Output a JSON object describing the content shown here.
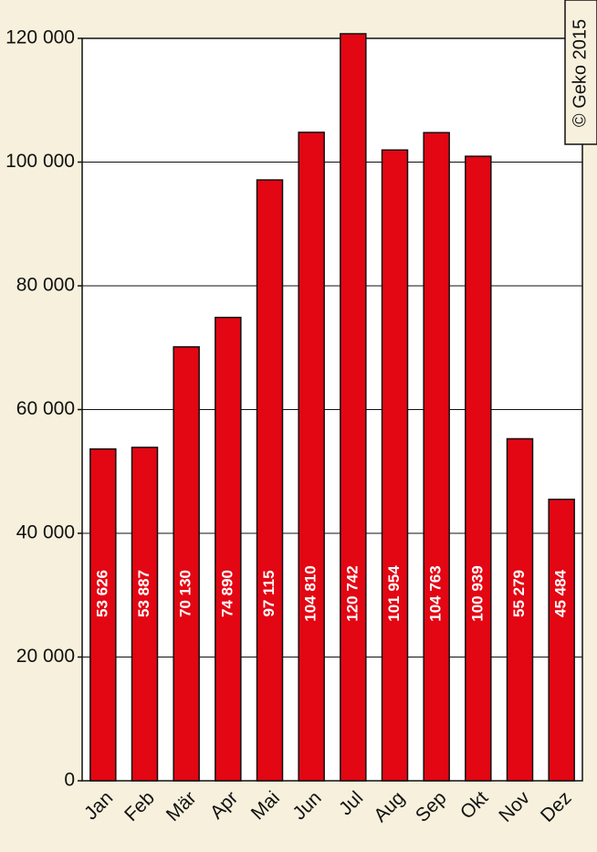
{
  "copyright": "© Geko 2015",
  "chart_data": {
    "type": "bar",
    "categories": [
      "Jan",
      "Feb",
      "Mär",
      "Apr",
      "Mai",
      "Jun",
      "Jul",
      "Aug",
      "Sep",
      "Okt",
      "Nov",
      "Dez"
    ],
    "values": [
      53626,
      53887,
      70130,
      74890,
      97115,
      104810,
      120742,
      101954,
      104763,
      100939,
      55279,
      45484
    ],
    "value_labels": [
      "53 626",
      "53 887",
      "70 130",
      "74 890",
      "97 115",
      "104 810",
      "120 742",
      "101 954",
      "104 763",
      "100 939",
      "55 279",
      "45 484"
    ],
    "color": "#e30613",
    "ylim": [
      0,
      120000
    ],
    "yticks": [
      0,
      {
        "value": 20000,
        "label": "20 000"
      },
      {
        "value": 40000,
        "label": "40 000"
      },
      {
        "value": 60000,
        "label": "60 000"
      },
      {
        "value": 80000,
        "label": "80 000"
      },
      {
        "value": 100000,
        "label": "100 000"
      },
      {
        "value": 120000,
        "label": "120 000"
      }
    ],
    "grid": true
  }
}
